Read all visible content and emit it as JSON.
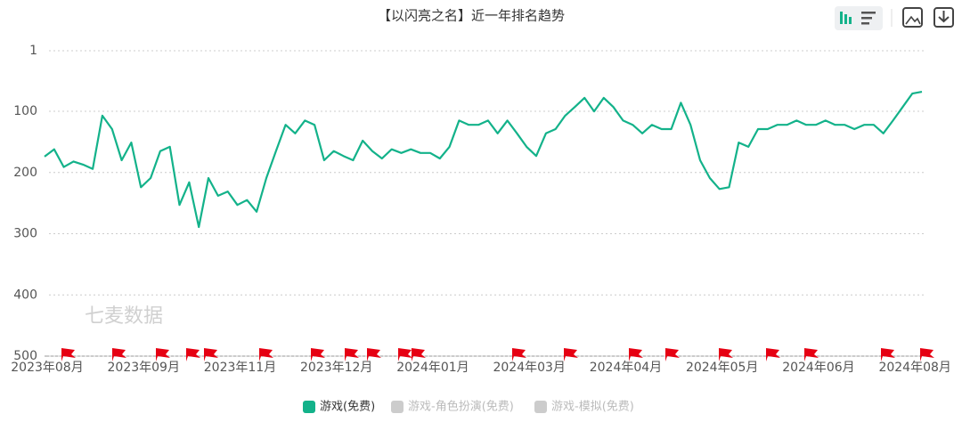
{
  "chart_data": {
    "type": "line",
    "title": "【以闪亮之名】近一年排名趋势",
    "watermark": "七麦数据",
    "categories": [
      "2023年08月",
      null,
      null,
      null,
      null,
      null,
      null,
      null,
      null,
      null,
      "2023年09月",
      null,
      null,
      null,
      null,
      null,
      null,
      null,
      null,
      null,
      "2023年11月",
      null,
      null,
      null,
      null,
      null,
      null,
      null,
      null,
      null,
      "2023年12月",
      null,
      null,
      null,
      null,
      null,
      null,
      null,
      null,
      null,
      "2024年01月",
      null,
      null,
      null,
      null,
      null,
      null,
      null,
      null,
      null,
      "2024年03月",
      null,
      null,
      null,
      null,
      null,
      null,
      null,
      null,
      null,
      "2024年04月",
      null,
      null,
      null,
      null,
      null,
      null,
      null,
      null,
      null,
      "2024年05月",
      null,
      null,
      null,
      null,
      null,
      null,
      null,
      null,
      null,
      "2024年06月",
      null,
      null,
      null,
      null,
      null,
      null,
      null,
      null,
      null,
      "2024年08月",
      null
    ],
    "series": [
      {
        "name": "游戏(免费)",
        "color": "#13b28a",
        "values": [
          174,
          162,
          191,
          182,
          187,
          194,
          107,
          129,
          180,
          151,
          224,
          209,
          165,
          158,
          253,
          216,
          289,
          209,
          238,
          231,
          253,
          245,
          264,
          209,
          165,
          122,
          136,
          115,
          122,
          180,
          165,
          173,
          180,
          148,
          165,
          177,
          162,
          168,
          162,
          168,
          168,
          177,
          158,
          115,
          122,
          122,
          115,
          136,
          115,
          136,
          158,
          173,
          136,
          129,
          107,
          93,
          78,
          100,
          78,
          93,
          115,
          122,
          136,
          122,
          129,
          129,
          86,
          122,
          180,
          209,
          227,
          224,
          151,
          158,
          129,
          129,
          122,
          122,
          115,
          122,
          122,
          115,
          122,
          122,
          129,
          122,
          122,
          136,
          115,
          93,
          71,
          68
        ]
      }
    ],
    "hidden_series": [
      {
        "name": "游戏-角色扮演(免费)",
        "color": "#cccccc"
      },
      {
        "name": "游戏-模拟(免费)",
        "color": "#cccccc"
      }
    ],
    "ylim": [
      500,
      1
    ],
    "yticks": [
      1,
      100,
      200,
      300,
      400,
      500
    ],
    "grid": true
  }
}
